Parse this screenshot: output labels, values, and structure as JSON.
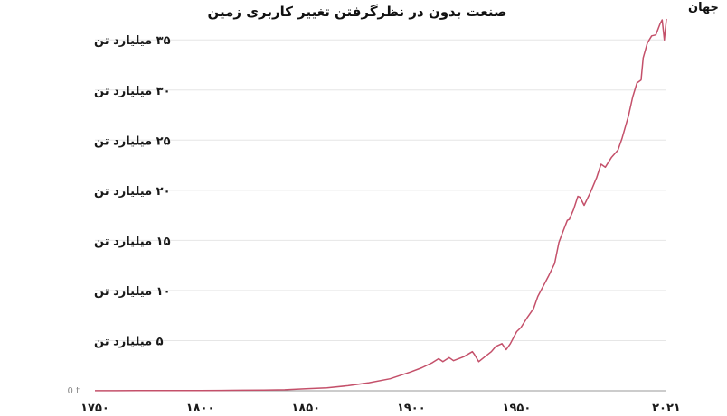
{
  "chart_data": {
    "type": "line",
    "title": "صنعت بدون در نظرگرفتن تغییر کاربری زمین",
    "xlabel": "",
    "ylabel": "",
    "xlim": [
      1750,
      2021
    ],
    "ylim": [
      0,
      37
    ],
    "x_ticks": [
      1750,
      1800,
      1850,
      1900,
      1950,
      2021
    ],
    "x_tick_labels": [
      "۱۷۵۰",
      "۱۸۰۰",
      "۱۸۵۰",
      "۱۹۰۰",
      "۱۹۵۰",
      "۲۰۲۱"
    ],
    "y_ticks": [
      0,
      5,
      10,
      15,
      20,
      25,
      30,
      35
    ],
    "y_tick_labels": [
      "0 t",
      "۵ میلیارد تن",
      "۱۰ میلیارد تن",
      "۱۵ میلیارد تن",
      "۲۰ میلیارد تن",
      "۲۵ میلیارد تن",
      "۳۰ میلیارد تن",
      "۳۵ میلیارد تن"
    ],
    "grid": true,
    "colors": {
      "line": "#c4506a",
      "grid": "#e6e6e6",
      "baseline": "#9a9a9a"
    },
    "series": [
      {
        "name": "جهان",
        "x": [
          1750,
          1760,
          1770,
          1780,
          1790,
          1800,
          1810,
          1820,
          1830,
          1840,
          1850,
          1860,
          1870,
          1880,
          1890,
          1900,
          1905,
          1910,
          1913,
          1915,
          1918,
          1920,
          1925,
          1929,
          1930,
          1932,
          1935,
          1938,
          1940,
          1943,
          1945,
          1947,
          1950,
          1952,
          1955,
          1958,
          1960,
          1963,
          1965,
          1968,
          1970,
          1972,
          1974,
          1975,
          1977,
          1979,
          1980,
          1982,
          1985,
          1988,
          1990,
          1992,
          1995,
          1998,
          2000,
          2003,
          2005,
          2007,
          2009,
          2010,
          2012,
          2014,
          2016,
          2018,
          2019,
          2020,
          2021
        ],
        "y": [
          0.01,
          0.01,
          0.02,
          0.02,
          0.03,
          0.03,
          0.04,
          0.05,
          0.07,
          0.1,
          0.2,
          0.3,
          0.5,
          0.8,
          1.2,
          1.9,
          2.3,
          2.8,
          3.2,
          2.9,
          3.3,
          3.0,
          3.4,
          3.9,
          3.6,
          2.9,
          3.4,
          3.9,
          4.4,
          4.7,
          4.1,
          4.7,
          5.9,
          6.3,
          7.3,
          8.2,
          9.4,
          10.6,
          11.4,
          12.7,
          14.8,
          15.9,
          17.0,
          17.1,
          18.1,
          19.4,
          19.3,
          18.5,
          19.8,
          21.3,
          22.6,
          22.3,
          23.3,
          24.0,
          25.2,
          27.4,
          29.3,
          30.7,
          31.0,
          33.2,
          34.7,
          35.4,
          35.5,
          36.6,
          37.0,
          35.0,
          37.1
        ]
      }
    ]
  }
}
